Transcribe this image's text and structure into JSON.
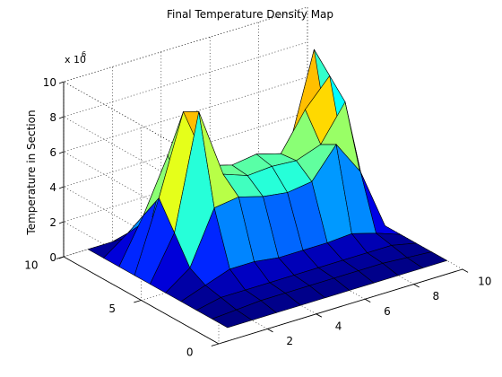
{
  "chart_data": {
    "type": "surface3d",
    "title": "Final Temperature Density Map",
    "zlabel": "Temperature in Section",
    "z_multiplier_label": "x 10",
    "z_multiplier_exponent": "6",
    "x_ticks": [
      "2",
      "4",
      "6",
      "8",
      "10"
    ],
    "y_ticks": [
      "0",
      "5",
      "10"
    ],
    "z_ticks": [
      "0",
      "2",
      "4",
      "6",
      "8",
      "10"
    ],
    "xlim": [
      0,
      10
    ],
    "ylim": [
      0,
      10
    ],
    "zlim": [
      0,
      10000000
    ],
    "grid": true,
    "colormap": "jet",
    "x": [
      1,
      2,
      3,
      4,
      5,
      6,
      7,
      8,
      9,
      10
    ],
    "y": [
      1,
      2,
      3,
      4,
      5,
      6,
      7,
      8,
      9,
      10
    ],
    "z": [
      [
        0,
        0,
        0,
        0,
        0,
        0,
        0,
        0,
        0,
        0
      ],
      [
        0,
        0.1,
        0.2,
        0.2,
        0.2,
        0.2,
        0.2,
        0.2,
        0.1,
        0
      ],
      [
        0,
        0.3,
        0.3,
        0.3,
        0.3,
        0.3,
        0.3,
        0.3,
        0.3,
        0
      ],
      [
        0,
        0.5,
        1.0,
        1.0,
        0.8,
        0.8,
        0.8,
        0.9,
        0.5,
        0
      ],
      [
        0,
        1.0,
        4.0,
        4.2,
        3.8,
        3.6,
        3.8,
        5.5,
        3.5,
        0
      ],
      [
        0,
        2.5,
        9.0,
        5.0,
        4.5,
        4.6,
        4.5,
        5.0,
        7.0,
        0
      ],
      [
        0,
        4.0,
        8.5,
        5.0,
        4.6,
        4.8,
        4.4,
        6.5,
        8.0,
        0
      ],
      [
        0,
        2.5,
        5.5,
        2.0,
        1.0,
        1.0,
        1.0,
        4.0,
        9.0,
        0
      ],
      [
        0,
        1.0,
        1.5,
        0.5,
        0.3,
        0.3,
        0.3,
        0.5,
        0.5,
        0
      ],
      [
        0,
        0,
        0,
        0,
        0,
        0,
        0,
        0,
        0,
        0
      ]
    ]
  }
}
